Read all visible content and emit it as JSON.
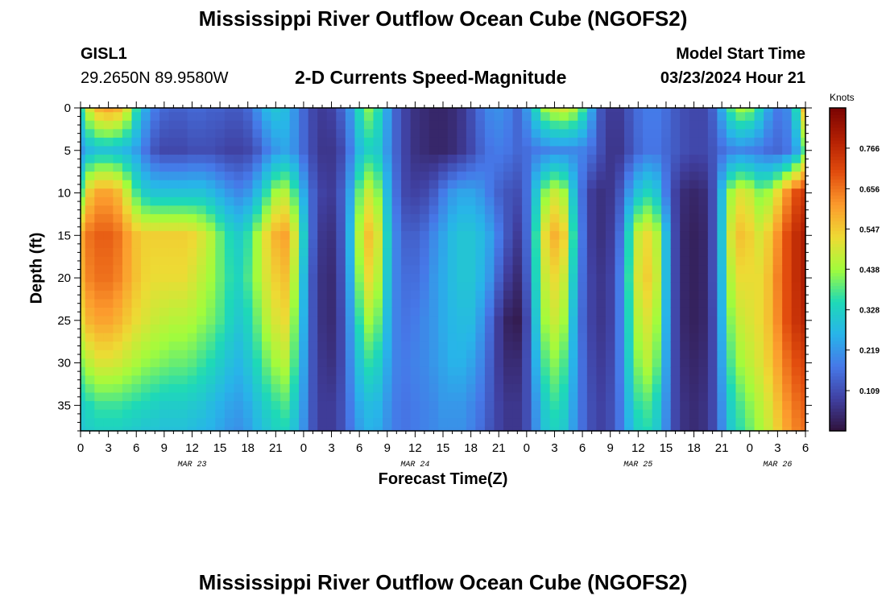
{
  "header": {
    "title": "Mississippi River Outflow Ocean Cube (NGOFS2)",
    "station": "GISL1",
    "coords": "29.2650N  89.9580W",
    "subtitle": "2-D Currents Speed-Magnitude",
    "model_start_label": "Model Start Time",
    "model_start_value": "03/23/2024 Hour 21",
    "bottom_title": "Mississippi River Outflow Ocean Cube (NGOFS2)"
  },
  "chart_data": {
    "type": "heatmap",
    "title": "2-D Currents Speed-Magnitude",
    "xlabel": "Forecast Time(Z)",
    "ylabel": "Depth (ft)",
    "colorbar_unit": "Knots",
    "colorbar_ticks": [
      "0.766",
      "0.656",
      "0.547",
      "0.438",
      "0.328",
      "0.219",
      "0.109"
    ],
    "colorbar_range": [
      0.0,
      0.875
    ],
    "x_range_hours": [
      0,
      78
    ],
    "x_tick_labels": [
      "0",
      "3",
      "6",
      "9",
      "12",
      "15",
      "18",
      "21",
      "0",
      "3",
      "6",
      "9",
      "12",
      "15",
      "18",
      "21",
      "0",
      "3",
      "6",
      "9",
      "12",
      "15",
      "18",
      "21",
      "0",
      "3",
      "6"
    ],
    "date_labels": [
      {
        "hour": 12,
        "label": "MAR 23"
      },
      {
        "hour": 36,
        "label": "MAR 24"
      },
      {
        "hour": 60,
        "label": "MAR 25"
      },
      {
        "hour": 75,
        "label": "MAR 26"
      }
    ],
    "y_range_ft": [
      0,
      38
    ],
    "y_ticks": [
      0,
      5,
      10,
      15,
      20,
      25,
      30,
      35
    ],
    "depths_ft": [
      0,
      5,
      10,
      15,
      20,
      25,
      30,
      35,
      38
    ],
    "hours": [
      0,
      1,
      2,
      3,
      4,
      5,
      6,
      7,
      8,
      9,
      10,
      11,
      12,
      13,
      14,
      15,
      16,
      17,
      18,
      19,
      20,
      21,
      22,
      23,
      24,
      25,
      26,
      27,
      28,
      29,
      30,
      31,
      32,
      33,
      34,
      35,
      36,
      37,
      38,
      39,
      40,
      41,
      42,
      43,
      44,
      45,
      46,
      47,
      48,
      49,
      50,
      51,
      52,
      53,
      54,
      55,
      56,
      57,
      58,
      59,
      60,
      61,
      62,
      63,
      64,
      65,
      66,
      67,
      68,
      69,
      70,
      71,
      72,
      73,
      74,
      75,
      76,
      77,
      78
    ],
    "speed_knots": [
      [
        0.36,
        0.5,
        0.58,
        0.6,
        0.58,
        0.5,
        0.36,
        0.25,
        0.18,
        0.15,
        0.14,
        0.14,
        0.15,
        0.15,
        0.14,
        0.14,
        0.13,
        0.13,
        0.15,
        0.21,
        0.27,
        0.3,
        0.28,
        0.22,
        0.15,
        0.1,
        0.08,
        0.09,
        0.14,
        0.22,
        0.35,
        0.42,
        0.36,
        0.24,
        0.14,
        0.09,
        0.06,
        0.05,
        0.04,
        0.04,
        0.05,
        0.07,
        0.11,
        0.16,
        0.2,
        0.21,
        0.19,
        0.15,
        0.22,
        0.34,
        0.44,
        0.48,
        0.49,
        0.46,
        0.38,
        0.24,
        0.12,
        0.08,
        0.08,
        0.12,
        0.16,
        0.18,
        0.18,
        0.16,
        0.13,
        0.11,
        0.1,
        0.1,
        0.14,
        0.25,
        0.38,
        0.44,
        0.42,
        0.34,
        0.24,
        0.18,
        0.2,
        0.34,
        0.56
      ],
      [
        0.22,
        0.28,
        0.3,
        0.3,
        0.29,
        0.27,
        0.23,
        0.17,
        0.12,
        0.1,
        0.1,
        0.1,
        0.11,
        0.11,
        0.11,
        0.1,
        0.09,
        0.09,
        0.1,
        0.13,
        0.18,
        0.22,
        0.24,
        0.21,
        0.15,
        0.1,
        0.07,
        0.07,
        0.1,
        0.18,
        0.28,
        0.33,
        0.31,
        0.22,
        0.14,
        0.09,
        0.06,
        0.05,
        0.04,
        0.04,
        0.05,
        0.07,
        0.1,
        0.14,
        0.17,
        0.18,
        0.17,
        0.15,
        0.16,
        0.18,
        0.19,
        0.2,
        0.2,
        0.2,
        0.19,
        0.16,
        0.11,
        0.07,
        0.07,
        0.11,
        0.15,
        0.17,
        0.17,
        0.15,
        0.13,
        0.11,
        0.1,
        0.1,
        0.12,
        0.16,
        0.19,
        0.2,
        0.19,
        0.18,
        0.16,
        0.15,
        0.17,
        0.24,
        0.38
      ],
      [
        0.4,
        0.55,
        0.6,
        0.6,
        0.57,
        0.48,
        0.38,
        0.32,
        0.3,
        0.3,
        0.3,
        0.3,
        0.3,
        0.3,
        0.28,
        0.25,
        0.22,
        0.2,
        0.22,
        0.28,
        0.36,
        0.44,
        0.46,
        0.38,
        0.25,
        0.14,
        0.09,
        0.08,
        0.13,
        0.24,
        0.4,
        0.48,
        0.42,
        0.28,
        0.16,
        0.1,
        0.09,
        0.1,
        0.13,
        0.18,
        0.22,
        0.24,
        0.24,
        0.22,
        0.18,
        0.14,
        0.12,
        0.11,
        0.16,
        0.3,
        0.42,
        0.48,
        0.44,
        0.3,
        0.16,
        0.08,
        0.06,
        0.07,
        0.12,
        0.22,
        0.3,
        0.34,
        0.3,
        0.18,
        0.09,
        0.05,
        0.04,
        0.05,
        0.11,
        0.28,
        0.44,
        0.5,
        0.48,
        0.42,
        0.44,
        0.52,
        0.62,
        0.7,
        0.74
      ],
      [
        0.6,
        0.66,
        0.68,
        0.68,
        0.66,
        0.61,
        0.56,
        0.54,
        0.54,
        0.54,
        0.54,
        0.54,
        0.53,
        0.5,
        0.46,
        0.4,
        0.35,
        0.32,
        0.36,
        0.44,
        0.52,
        0.58,
        0.6,
        0.5,
        0.32,
        0.14,
        0.07,
        0.06,
        0.12,
        0.27,
        0.46,
        0.56,
        0.5,
        0.33,
        0.19,
        0.14,
        0.14,
        0.16,
        0.2,
        0.24,
        0.28,
        0.3,
        0.3,
        0.28,
        0.24,
        0.18,
        0.12,
        0.08,
        0.15,
        0.36,
        0.52,
        0.58,
        0.54,
        0.36,
        0.17,
        0.08,
        0.06,
        0.08,
        0.16,
        0.34,
        0.48,
        0.52,
        0.46,
        0.28,
        0.1,
        0.04,
        0.03,
        0.04,
        0.11,
        0.3,
        0.5,
        0.56,
        0.54,
        0.5,
        0.54,
        0.62,
        0.7,
        0.76,
        0.8
      ],
      [
        0.58,
        0.64,
        0.66,
        0.66,
        0.64,
        0.6,
        0.56,
        0.53,
        0.52,
        0.52,
        0.52,
        0.52,
        0.5,
        0.47,
        0.44,
        0.4,
        0.36,
        0.34,
        0.38,
        0.44,
        0.5,
        0.54,
        0.56,
        0.46,
        0.28,
        0.12,
        0.06,
        0.05,
        0.11,
        0.25,
        0.42,
        0.52,
        0.46,
        0.31,
        0.19,
        0.16,
        0.16,
        0.18,
        0.22,
        0.25,
        0.28,
        0.3,
        0.3,
        0.27,
        0.22,
        0.14,
        0.08,
        0.05,
        0.13,
        0.34,
        0.48,
        0.52,
        0.48,
        0.32,
        0.16,
        0.09,
        0.07,
        0.09,
        0.18,
        0.36,
        0.5,
        0.54,
        0.48,
        0.28,
        0.1,
        0.04,
        0.03,
        0.04,
        0.11,
        0.28,
        0.46,
        0.52,
        0.52,
        0.52,
        0.56,
        0.64,
        0.7,
        0.76,
        0.8
      ],
      [
        0.52,
        0.58,
        0.6,
        0.6,
        0.58,
        0.55,
        0.52,
        0.5,
        0.48,
        0.47,
        0.46,
        0.46,
        0.45,
        0.43,
        0.41,
        0.38,
        0.34,
        0.31,
        0.34,
        0.4,
        0.46,
        0.5,
        0.52,
        0.42,
        0.26,
        0.12,
        0.06,
        0.05,
        0.1,
        0.22,
        0.36,
        0.44,
        0.4,
        0.28,
        0.19,
        0.17,
        0.18,
        0.2,
        0.22,
        0.25,
        0.27,
        0.28,
        0.28,
        0.23,
        0.16,
        0.08,
        0.03,
        0.02,
        0.1,
        0.3,
        0.44,
        0.48,
        0.44,
        0.28,
        0.15,
        0.09,
        0.07,
        0.09,
        0.18,
        0.34,
        0.46,
        0.5,
        0.44,
        0.26,
        0.1,
        0.04,
        0.03,
        0.04,
        0.1,
        0.26,
        0.42,
        0.48,
        0.5,
        0.52,
        0.56,
        0.63,
        0.7,
        0.75,
        0.78
      ],
      [
        0.42,
        0.47,
        0.5,
        0.5,
        0.49,
        0.47,
        0.45,
        0.43,
        0.42,
        0.41,
        0.4,
        0.4,
        0.39,
        0.37,
        0.35,
        0.32,
        0.29,
        0.27,
        0.3,
        0.35,
        0.4,
        0.44,
        0.46,
        0.38,
        0.24,
        0.12,
        0.07,
        0.06,
        0.1,
        0.2,
        0.3,
        0.36,
        0.33,
        0.25,
        0.19,
        0.18,
        0.19,
        0.2,
        0.22,
        0.24,
        0.26,
        0.26,
        0.24,
        0.2,
        0.14,
        0.08,
        0.05,
        0.05,
        0.11,
        0.26,
        0.38,
        0.42,
        0.38,
        0.26,
        0.16,
        0.1,
        0.08,
        0.1,
        0.18,
        0.32,
        0.42,
        0.46,
        0.4,
        0.24,
        0.1,
        0.05,
        0.04,
        0.05,
        0.1,
        0.24,
        0.38,
        0.44,
        0.47,
        0.5,
        0.54,
        0.6,
        0.66,
        0.7,
        0.72
      ],
      [
        0.32,
        0.35,
        0.37,
        0.37,
        0.37,
        0.36,
        0.35,
        0.34,
        0.33,
        0.32,
        0.32,
        0.32,
        0.31,
        0.3,
        0.28,
        0.26,
        0.24,
        0.23,
        0.25,
        0.29,
        0.33,
        0.36,
        0.38,
        0.32,
        0.22,
        0.12,
        0.08,
        0.08,
        0.11,
        0.18,
        0.25,
        0.28,
        0.27,
        0.22,
        0.18,
        0.17,
        0.18,
        0.19,
        0.2,
        0.22,
        0.22,
        0.22,
        0.2,
        0.17,
        0.13,
        0.09,
        0.07,
        0.07,
        0.11,
        0.22,
        0.32,
        0.36,
        0.33,
        0.24,
        0.16,
        0.11,
        0.09,
        0.11,
        0.17,
        0.28,
        0.36,
        0.38,
        0.33,
        0.21,
        0.1,
        0.06,
        0.05,
        0.06,
        0.1,
        0.21,
        0.33,
        0.38,
        0.42,
        0.46,
        0.5,
        0.56,
        0.62,
        0.66,
        0.68
      ],
      [
        0.3,
        0.32,
        0.33,
        0.33,
        0.33,
        0.32,
        0.31,
        0.3,
        0.3,
        0.29,
        0.29,
        0.29,
        0.28,
        0.27,
        0.26,
        0.24,
        0.22,
        0.21,
        0.23,
        0.27,
        0.3,
        0.33,
        0.34,
        0.29,
        0.21,
        0.12,
        0.08,
        0.08,
        0.11,
        0.17,
        0.23,
        0.26,
        0.25,
        0.21,
        0.18,
        0.17,
        0.18,
        0.19,
        0.2,
        0.21,
        0.21,
        0.21,
        0.19,
        0.16,
        0.12,
        0.09,
        0.07,
        0.07,
        0.11,
        0.21,
        0.3,
        0.33,
        0.31,
        0.23,
        0.16,
        0.11,
        0.09,
        0.11,
        0.17,
        0.26,
        0.33,
        0.35,
        0.31,
        0.2,
        0.1,
        0.06,
        0.05,
        0.06,
        0.1,
        0.2,
        0.31,
        0.36,
        0.4,
        0.44,
        0.48,
        0.54,
        0.6,
        0.64,
        0.66
      ]
    ]
  }
}
